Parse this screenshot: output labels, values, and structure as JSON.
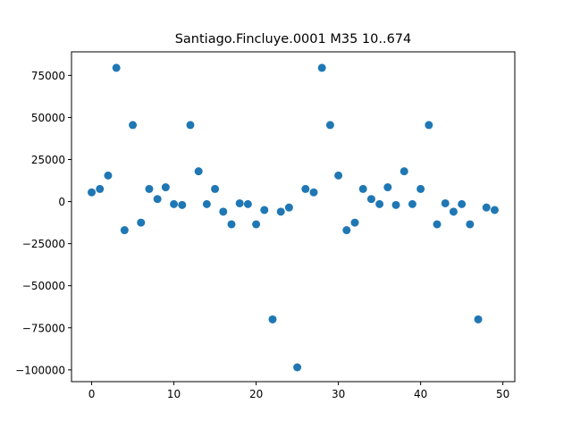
{
  "chart_data": {
    "type": "scatter",
    "title": "Santiago.Fincluye.0001 M35 10..674",
    "xlabel": "",
    "ylabel": "",
    "xlim": [
      -2.45,
      51.45
    ],
    "ylim": [
      -107000,
      89000
    ],
    "xticks": [
      0,
      10,
      20,
      30,
      40,
      50
    ],
    "yticks": [
      -100000,
      -75000,
      -50000,
      -25000,
      0,
      25000,
      50000,
      75000
    ],
    "grid": false,
    "marker_color": "#1f77b4",
    "series": [
      {
        "x": [
          0,
          1,
          2,
          3,
          4,
          5,
          6,
          7,
          8,
          9,
          10,
          11,
          12,
          13,
          14,
          15,
          16,
          17,
          18,
          19,
          20,
          21,
          22,
          23,
          24,
          25,
          26,
          27,
          28,
          29,
          30,
          31,
          32,
          33,
          34,
          35,
          36,
          37,
          38,
          39,
          40,
          41,
          42,
          43,
          44,
          45,
          46,
          47,
          48,
          49
        ],
        "y": [
          5500,
          7500,
          15500,
          79500,
          -17000,
          45500,
          -12500,
          7500,
          1500,
          8500,
          -1500,
          -2000,
          45500,
          18000,
          -1500,
          7500,
          -6000,
          -13500,
          -1000,
          -1500,
          -13500,
          -5000,
          -70000,
          -6000,
          -3500,
          -98500,
          7500,
          5500,
          79500,
          45500,
          15500,
          -17000,
          -12500,
          7500,
          1500,
          -1500,
          8500,
          -2000,
          18000,
          -1500,
          7500,
          45500,
          -13500,
          -1000,
          -6000,
          -1500,
          -13500,
          -70000,
          -3500,
          -5000
        ]
      }
    ]
  }
}
